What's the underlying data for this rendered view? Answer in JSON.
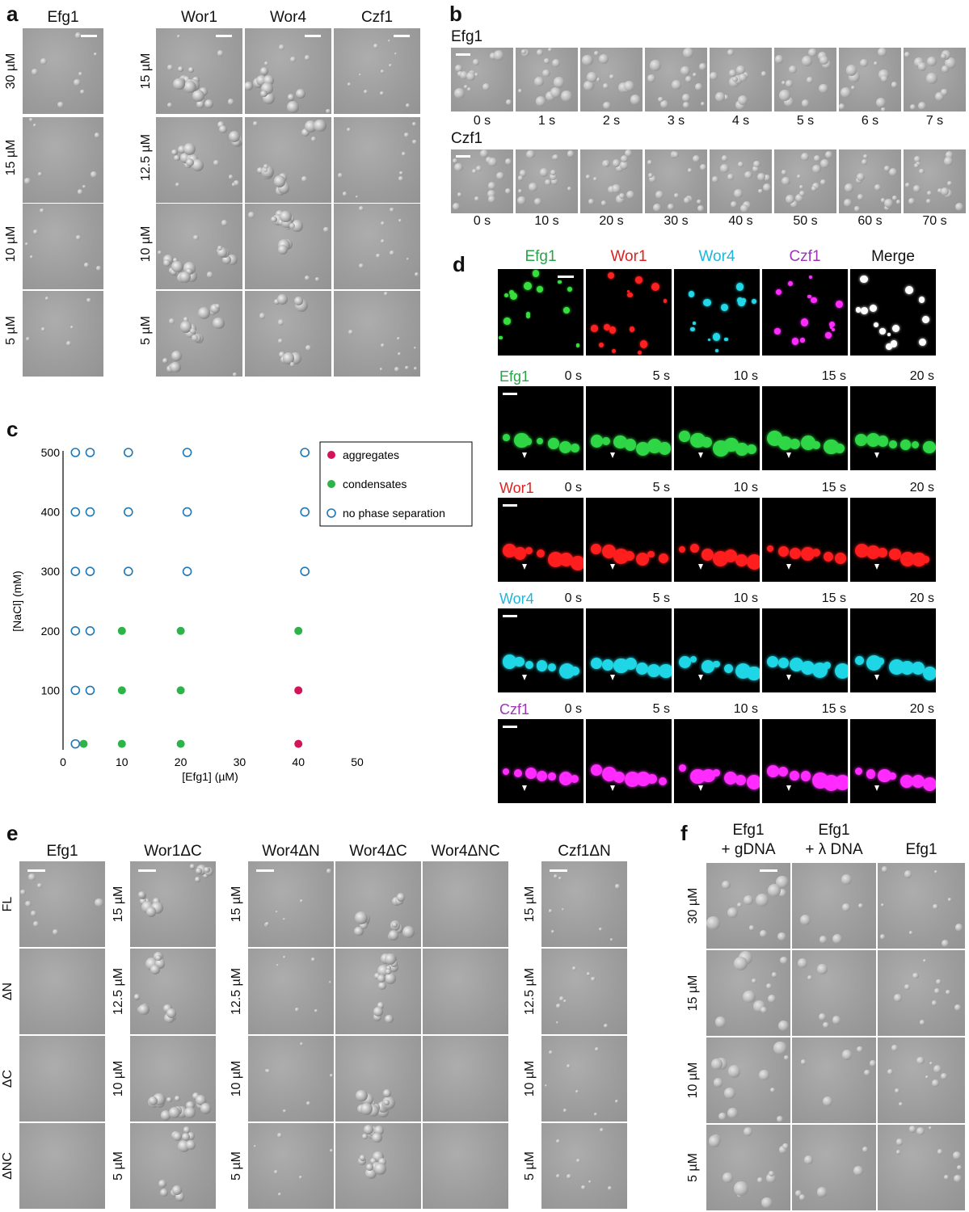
{
  "panel_a": {
    "letter": "a",
    "left_header": "Efg1",
    "left_rows": [
      "30 µM",
      "15 µM",
      "10 µM",
      "5 µM"
    ],
    "right_headers": [
      "Wor1",
      "Wor4",
      "Czf1"
    ],
    "right_rows": [
      "15 µM",
      "12.5 µM",
      "10 µM",
      "5 µM"
    ]
  },
  "panel_b": {
    "letter": "b",
    "row1_title": "Efg1",
    "row1_times": [
      "0 s",
      "1 s",
      "2 s",
      "3 s",
      "4 s",
      "5 s",
      "6 s",
      "7 s"
    ],
    "row2_title": "Czf1",
    "row2_times": [
      "0 s",
      "10 s",
      "20 s",
      "30 s",
      "40 s",
      "50 s",
      "60 s",
      "70 s"
    ]
  },
  "panel_c": {
    "letter": "c"
  },
  "panel_d": {
    "letter": "d",
    "channels": [
      {
        "name": "Efg1",
        "color": "#2ba34a"
      },
      {
        "name": "Wor1",
        "color": "#e0201f"
      },
      {
        "name": "Wor4",
        "color": "#1fb6dc"
      },
      {
        "name": "Czf1",
        "color": "#9c36b5"
      },
      {
        "name": "Merge",
        "color": "#111111"
      }
    ],
    "timelapse_times": [
      "0 s",
      "5 s",
      "10 s",
      "15 s",
      "20 s"
    ],
    "timelapse_rows": [
      {
        "name": "Efg1",
        "color": "#2ba34a",
        "fill": "#2fd646"
      },
      {
        "name": "Wor1",
        "color": "#e0201f",
        "fill": "#ff1e1e"
      },
      {
        "name": "Wor4",
        "color": "#1fb6dc",
        "fill": "#1fd6e6"
      },
      {
        "name": "Czf1",
        "color": "#9c36b5",
        "fill": "#ff2bff"
      }
    ]
  },
  "panel_e": {
    "letter": "e",
    "group1_header": "Efg1",
    "group1_rows": [
      "FL",
      "ΔN",
      "ΔC",
      "ΔNC"
    ],
    "group2_header": "Wor1ΔC",
    "group3_headers": [
      "Wor4ΔN",
      "Wor4ΔC",
      "Wor4ΔNC"
    ],
    "group4_header": "Czf1ΔN",
    "conc_rows": [
      "15 µM",
      "12.5 µM",
      "10 µM",
      "5 µM"
    ]
  },
  "panel_f": {
    "letter": "f",
    "headers": [
      [
        "Efg1",
        "+ gDNA"
      ],
      [
        "Efg1",
        "+ λ DNA"
      ],
      [
        "Efg1",
        ""
      ]
    ],
    "rows": [
      "30 µM",
      "15 µM",
      "10 µM",
      "5 µM"
    ]
  },
  "chart_data": {
    "type": "scatter",
    "xlabel": "[Efg1] (µM)",
    "ylabel": "[NaCl] (mM)",
    "xlim": [
      0,
      50
    ],
    "ylim": [
      0,
      500
    ],
    "x_ticks": [
      0,
      10,
      20,
      30,
      40,
      50
    ],
    "y_ticks": [
      100,
      200,
      300,
      400,
      500
    ],
    "legend_position": "top-right",
    "series": [
      {
        "name": "aggregates",
        "color": "#d4145a",
        "marker": "filled-circle",
        "points": [
          [
            40,
            100
          ],
          [
            40,
            10
          ]
        ]
      },
      {
        "name": "condensates",
        "color": "#2db34a",
        "marker": "filled-circle",
        "points": [
          [
            3.5,
            10
          ],
          [
            10,
            10
          ],
          [
            20,
            10
          ],
          [
            10,
            100
          ],
          [
            20,
            100
          ],
          [
            10,
            200
          ],
          [
            20,
            200
          ],
          [
            40,
            200
          ]
        ]
      },
      {
        "name": "no phase separation",
        "color": "#1f77b4",
        "marker": "open-circle",
        "points": [
          [
            1,
            10
          ],
          [
            1,
            100
          ],
          [
            3.5,
            100
          ],
          [
            1,
            200
          ],
          [
            3.5,
            200
          ],
          [
            1,
            300
          ],
          [
            3.5,
            300
          ],
          [
            10,
            300
          ],
          [
            20,
            300
          ],
          [
            40,
            300
          ],
          [
            1,
            400
          ],
          [
            3.5,
            400
          ],
          [
            10,
            400
          ],
          [
            20,
            400
          ],
          [
            40,
            400
          ],
          [
            1,
            500
          ],
          [
            3.5,
            500
          ],
          [
            10,
            500
          ],
          [
            20,
            500
          ],
          [
            40,
            500
          ]
        ]
      }
    ]
  }
}
